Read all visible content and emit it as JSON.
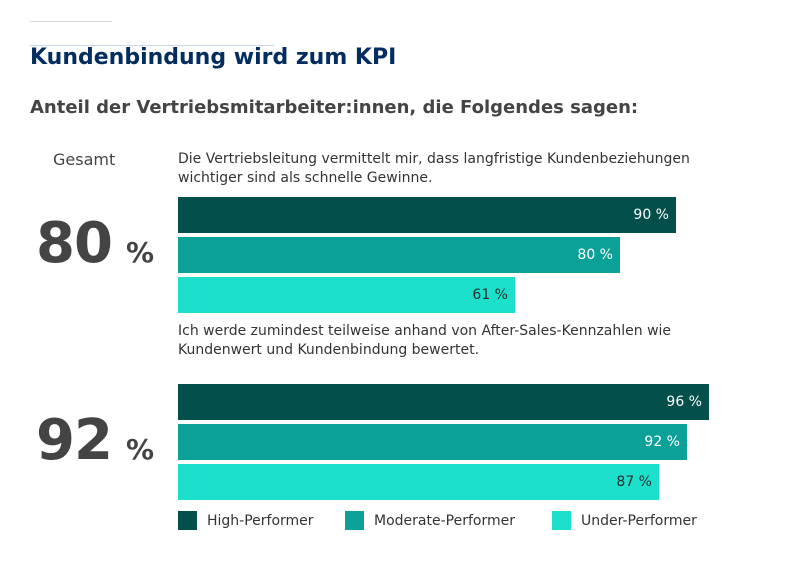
{
  "title": "Kundenbindung wird zum KPI",
  "subtitle": "Anteil der Vertriebsmitarbeiter:innen, die Folgendes sagen:",
  "total_label": "Gesamt",
  "colors": {
    "title": "#032d60",
    "high": "#034f4c",
    "moderate": "#0ba198",
    "under": "#1ce0cc"
  },
  "chart_data": {
    "type": "bar",
    "orientation": "horizontal",
    "unit": "%",
    "xlim": [
      0,
      100
    ],
    "legend_position": "bottom",
    "legend": [
      "High-Performer",
      "Moderate-Performer",
      "Under-Performer"
    ],
    "groups": [
      {
        "question": "Die Vertriebsleitung vermittelt mir, dass langfristige Kundenbeziehungen wichtiger sind als schnelle Gewinne.",
        "total": {
          "value": "80",
          "unit": "%"
        },
        "bars": [
          {
            "series": "High-Performer",
            "value": 90,
            "label": "90 %"
          },
          {
            "series": "Moderate-Performer",
            "value": 80,
            "label": "80 %"
          },
          {
            "series": "Under-Performer",
            "value": 61,
            "label": "61 %"
          }
        ]
      },
      {
        "question": "Ich werde zumindest teilweise anhand von After-Sales-Kennzahlen wie Kundenwert und Kundenbindung bewertet.",
        "total": {
          "value": "92",
          "unit": "%"
        },
        "bars": [
          {
            "series": "High-Performer",
            "value": 96,
            "label": "96 %"
          },
          {
            "series": "Moderate-Performer",
            "value": 92,
            "label": "92 %"
          },
          {
            "series": "Under-Performer",
            "value": 87,
            "label": "87 %"
          }
        ]
      }
    ]
  }
}
